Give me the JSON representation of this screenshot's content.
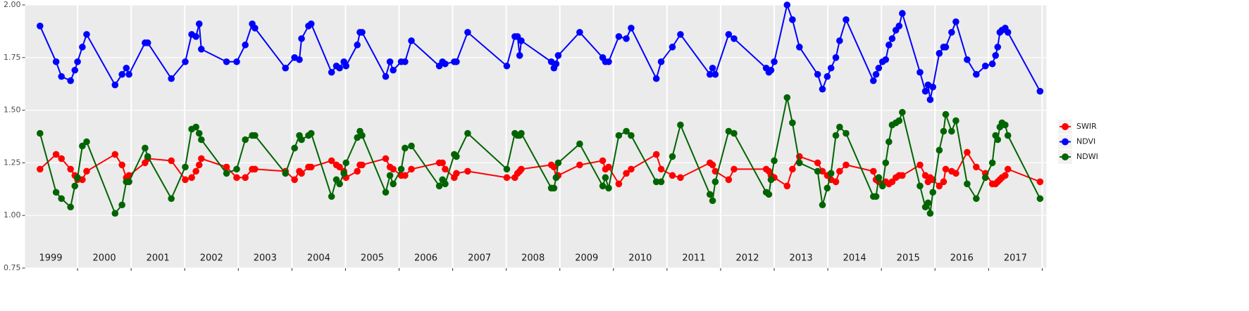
{
  "chart_data": {
    "type": "line",
    "x": [
      1999.3,
      1999.6,
      1999.7,
      1999.87,
      1999.95,
      2000.0,
      2000.09,
      2000.17,
      2000.7,
      2000.83,
      2000.91,
      2000.96,
      2001.26,
      2001.31,
      2001.75,
      2002.01,
      2002.13,
      2002.21,
      2002.27,
      2002.31,
      2002.78,
      2002.97,
      2003.13,
      2003.26,
      2003.31,
      2003.88,
      2004.05,
      2004.14,
      2004.18,
      2004.31,
      2004.36,
      2004.74,
      2004.83,
      2004.89,
      2004.97,
      2005.01,
      2005.22,
      2005.27,
      2005.31,
      2005.75,
      2005.83,
      2005.89,
      2006.04,
      2006.11,
      2006.23,
      2006.75,
      2006.81,
      2006.86,
      2007.03,
      2007.07,
      2007.28,
      2008.01,
      2008.16,
      2008.21,
      2008.25,
      2008.28,
      2008.84,
      2008.89,
      2008.93,
      2008.97,
      2009.37,
      2009.8,
      2009.85,
      2009.91,
      2010.1,
      2010.24,
      2010.33,
      2010.8,
      2010.89,
      2011.1,
      2011.25,
      2011.8,
      2011.85,
      2011.9,
      2012.15,
      2012.25,
      2012.85,
      2012.9,
      2012.94,
      2013.0,
      2013.24,
      2013.34,
      2013.47,
      2013.81,
      2013.9,
      2013.99,
      2014.06,
      2014.15,
      2014.22,
      2014.34,
      2014.85,
      2014.9,
      2014.95,
      2015.02,
      2015.08,
      2015.14,
      2015.2,
      2015.27,
      2015.33,
      2015.39,
      2015.72,
      2015.82,
      2015.87,
      2015.91,
      2015.96,
      2016.08,
      2016.16,
      2016.2,
      2016.31,
      2016.39,
      2016.6,
      2016.77,
      2016.94,
      2017.07,
      2017.13,
      2017.17,
      2017.21,
      2017.25,
      2017.31,
      2017.36,
      2017.96
    ],
    "series": [
      {
        "name": "SWIR",
        "color": "#ff0000",
        "values": [
          1.22,
          1.29,
          1.27,
          1.22,
          1.19,
          1.17,
          1.17,
          1.21,
          1.29,
          1.24,
          1.18,
          1.19,
          1.25,
          1.27,
          1.26,
          1.17,
          1.18,
          1.21,
          1.24,
          1.27,
          1.23,
          1.18,
          1.18,
          1.22,
          1.22,
          1.21,
          1.17,
          1.21,
          1.2,
          1.23,
          1.23,
          1.26,
          1.24,
          1.23,
          1.21,
          1.18,
          1.21,
          1.24,
          1.24,
          1.27,
          1.23,
          1.22,
          1.19,
          1.19,
          1.22,
          1.25,
          1.25,
          1.22,
          1.18,
          1.2,
          1.21,
          1.18,
          1.18,
          1.2,
          1.21,
          1.22,
          1.24,
          1.23,
          1.18,
          1.19,
          1.24,
          1.26,
          1.22,
          1.23,
          1.15,
          1.2,
          1.22,
          1.29,
          1.22,
          1.19,
          1.18,
          1.25,
          1.24,
          1.21,
          1.17,
          1.22,
          1.22,
          1.21,
          1.19,
          1.18,
          1.14,
          1.22,
          1.28,
          1.25,
          1.21,
          1.19,
          1.17,
          1.16,
          1.21,
          1.24,
          1.21,
          1.17,
          1.16,
          1.15,
          1.16,
          1.15,
          1.16,
          1.18,
          1.19,
          1.19,
          1.24,
          1.19,
          1.16,
          1.18,
          1.17,
          1.14,
          1.16,
          1.22,
          1.21,
          1.2,
          1.3,
          1.23,
          1.2,
          1.15,
          1.15,
          1.16,
          1.17,
          1.18,
          1.19,
          1.22,
          1.16
        ]
      },
      {
        "name": "NDVI",
        "color": "#0000ff",
        "values": [
          1.9,
          1.73,
          1.66,
          1.64,
          1.69,
          1.73,
          1.8,
          1.86,
          1.62,
          1.67,
          1.7,
          1.67,
          1.82,
          1.82,
          1.65,
          1.73,
          1.86,
          1.85,
          1.91,
          1.79,
          1.73,
          1.73,
          1.81,
          1.91,
          1.89,
          1.7,
          1.75,
          1.74,
          1.84,
          1.9,
          1.91,
          1.68,
          1.71,
          1.7,
          1.73,
          1.71,
          1.81,
          1.87,
          1.87,
          1.66,
          1.73,
          1.69,
          1.73,
          1.73,
          1.83,
          1.71,
          1.73,
          1.72,
          1.73,
          1.73,
          1.87,
          1.71,
          1.85,
          1.85,
          1.76,
          1.83,
          1.73,
          1.7,
          1.72,
          1.76,
          1.87,
          1.75,
          1.73,
          1.73,
          1.85,
          1.84,
          1.89,
          1.65,
          1.73,
          1.8,
          1.86,
          1.67,
          1.7,
          1.67,
          1.86,
          1.84,
          1.7,
          1.68,
          1.69,
          1.73,
          2.0,
          1.93,
          1.8,
          1.67,
          1.6,
          1.66,
          1.7,
          1.75,
          1.83,
          1.93,
          1.64,
          1.67,
          1.7,
          1.73,
          1.74,
          1.81,
          1.84,
          1.88,
          1.9,
          1.96,
          1.68,
          1.59,
          1.62,
          1.55,
          1.61,
          1.77,
          1.8,
          1.8,
          1.87,
          1.92,
          1.74,
          1.67,
          1.71,
          1.72,
          1.76,
          1.8,
          1.87,
          1.88,
          1.89,
          1.87,
          1.59
        ]
      },
      {
        "name": "NDWI",
        "color": "#006400",
        "values": [
          1.39,
          1.11,
          1.08,
          1.04,
          1.14,
          1.18,
          1.33,
          1.35,
          1.01,
          1.05,
          1.16,
          1.16,
          1.32,
          1.28,
          1.08,
          1.23,
          1.41,
          1.42,
          1.39,
          1.36,
          1.2,
          1.22,
          1.36,
          1.38,
          1.38,
          1.2,
          1.32,
          1.38,
          1.36,
          1.38,
          1.39,
          1.09,
          1.17,
          1.15,
          1.2,
          1.25,
          1.37,
          1.4,
          1.38,
          1.11,
          1.19,
          1.15,
          1.22,
          1.32,
          1.33,
          1.14,
          1.17,
          1.15,
          1.29,
          1.28,
          1.39,
          1.22,
          1.39,
          1.38,
          1.38,
          1.39,
          1.13,
          1.13,
          1.18,
          1.25,
          1.34,
          1.14,
          1.18,
          1.13,
          1.38,
          1.4,
          1.38,
          1.16,
          1.16,
          1.28,
          1.43,
          1.1,
          1.07,
          1.16,
          1.4,
          1.39,
          1.11,
          1.1,
          1.17,
          1.26,
          1.56,
          1.44,
          1.25,
          1.21,
          1.05,
          1.13,
          1.2,
          1.38,
          1.42,
          1.39,
          1.09,
          1.09,
          1.18,
          1.14,
          1.25,
          1.35,
          1.43,
          1.44,
          1.45,
          1.49,
          1.14,
          1.04,
          1.06,
          1.01,
          1.11,
          1.31,
          1.4,
          1.48,
          1.4,
          1.45,
          1.15,
          1.08,
          1.18,
          1.25,
          1.38,
          1.36,
          1.42,
          1.44,
          1.43,
          1.38,
          1.08
        ]
      }
    ],
    "xlim": [
      1999.02,
      2018.08
    ],
    "xticks": [
      {
        "value": 1999.5,
        "label": "1999"
      },
      {
        "value": 2000.5,
        "label": "2000"
      },
      {
        "value": 2001.5,
        "label": "2001"
      },
      {
        "value": 2002.5,
        "label": "2002"
      },
      {
        "value": 2003.5,
        "label": "2003"
      },
      {
        "value": 2004.5,
        "label": "2004"
      },
      {
        "value": 2005.5,
        "label": "2005"
      },
      {
        "value": 2006.5,
        "label": "2006"
      },
      {
        "value": 2007.5,
        "label": "2007"
      },
      {
        "value": 2008.5,
        "label": "2008"
      },
      {
        "value": 2009.5,
        "label": "2009"
      },
      {
        "value": 2010.5,
        "label": "2010"
      },
      {
        "value": 2011.5,
        "label": "2011"
      },
      {
        "value": 2012.5,
        "label": "2012"
      },
      {
        "value": 2013.5,
        "label": "2013"
      },
      {
        "value": 2014.5,
        "label": "2014"
      },
      {
        "value": 2015.5,
        "label": "2015"
      },
      {
        "value": 2016.5,
        "label": "2016"
      },
      {
        "value": 2017.5,
        "label": "2017"
      }
    ],
    "ylim": [
      0.75,
      2.0
    ],
    "yticks": [
      0.75,
      {
        "value": 1.0,
        "label": "1.00"
      },
      1.25,
      {
        "value": 1.5,
        "label": "1.50"
      },
      1.75,
      {
        "value": 2.0,
        "label": "2.00"
      }
    ],
    "grid": true,
    "legend": "right"
  }
}
